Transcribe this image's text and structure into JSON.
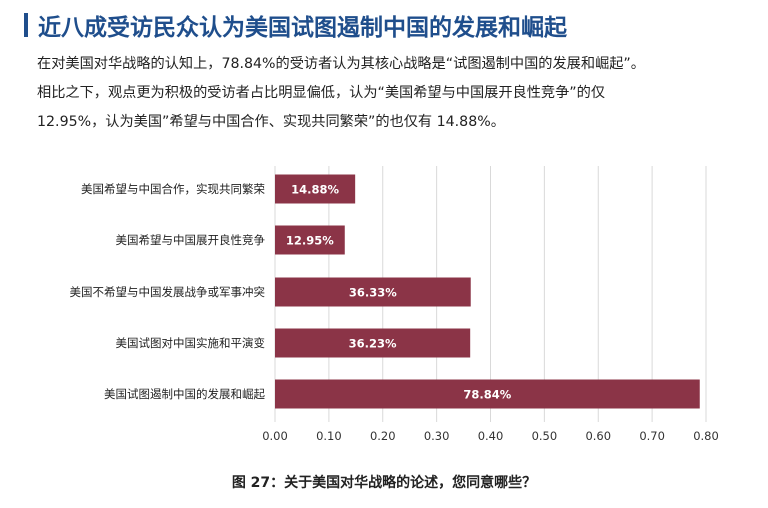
{
  "heading": "近八成受访民众认为美国试图遏制中国的发展和崛起",
  "paragraph": {
    "line1": "在对美国对华战略的认知上，78.84%的受访者认为其核心战略是“试图遏制中国的发展和崛起”。",
    "line2": "相比之下，观点更为积极的受访者占比明显偏低，认为“美国希望与中国展开良性竞争”的仅",
    "line3": "12.95%，认为美国”希望与中国合作、实现共同繁荣”的也仅有 14.88%。"
  },
  "caption": "图 27：关于美国对华战略的论述，您同意哪些？",
  "chart_data": {
    "type": "bar",
    "orientation": "horizontal",
    "bar_color": "#8b3447",
    "categories": [
      "美国希望与中国合作，实现共同繁荣",
      "美国希望与中国展开良性竞争",
      "美国不希望与中国发展战争或军事冲突",
      "美国试图对中国实施和平演变",
      "美国试图遏制中国的发展和崛起"
    ],
    "values": [
      0.1488,
      0.1295,
      0.3633,
      0.3623,
      0.7884
    ],
    "data_labels": [
      "14.88%",
      "12.95%",
      "36.33%",
      "36.23%",
      "78.84%"
    ],
    "xticks": [
      "0.00",
      "0.10",
      "0.20",
      "0.30",
      "0.40",
      "0.50",
      "0.60",
      "0.70",
      "0.80"
    ],
    "xlim": [
      0,
      0.8
    ],
    "grid": "vertical"
  }
}
